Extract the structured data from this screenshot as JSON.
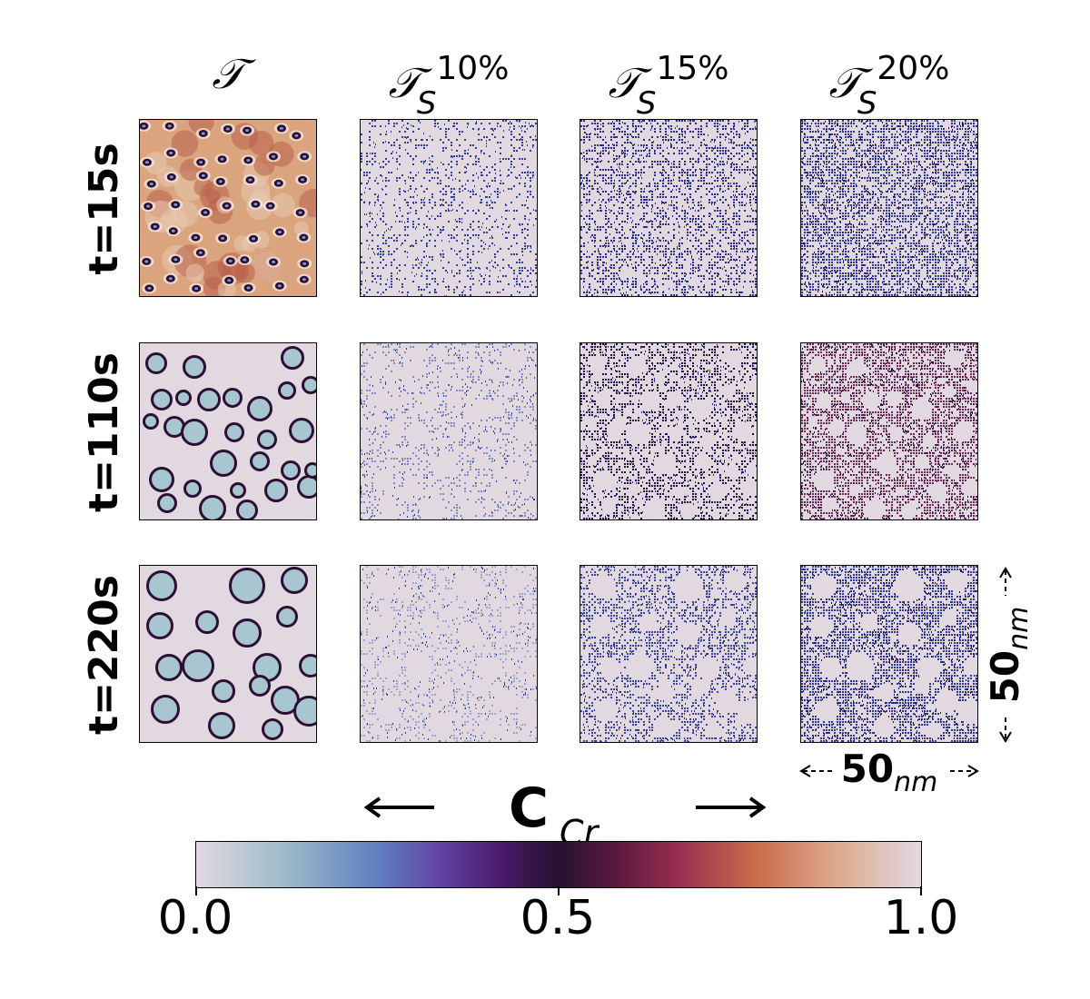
{
  "columns": [
    {
      "main": "𝒯",
      "sup": "",
      "sub": ""
    },
    {
      "main": "𝒯",
      "sup": "10%",
      "sub": "S"
    },
    {
      "main": "𝒯",
      "sup": "15%",
      "sub": "S"
    },
    {
      "main": "𝒯",
      "sup": "20%",
      "sub": "S"
    }
  ],
  "rows": [
    "t=15s",
    "t=110s",
    "t=220s"
  ],
  "scale_bar": {
    "value": "50",
    "unit": "nm"
  },
  "colorbar": {
    "label": "C",
    "label_sub": "Cr",
    "ticks": [
      "0.0",
      "0.5",
      "1.0"
    ],
    "colormap": "twilight",
    "range": [
      0.0,
      1.0
    ]
  },
  "colors": {
    "background_light": "#e2d8df",
    "precipitate_fill": "#a7c6cf",
    "noise_blue": "#3a46a0",
    "noise_dark": "#2a1240",
    "matrix_warm": "#d9a47e",
    "rim_dark": "#2d0f36"
  }
}
